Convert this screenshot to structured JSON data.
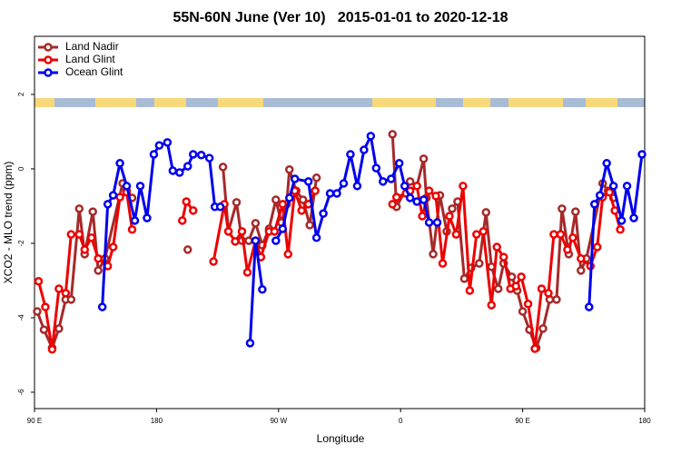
{
  "chart_data": {
    "type": "line",
    "title": "55N-60N June (Ver 10)   2015-01-01 to 2020-12-18",
    "xlabel": "Longitude",
    "ylabel": "XCO2 - MLO trend (ppm)",
    "xlim": [
      90,
      540
    ],
    "ylim": [
      -6.44,
      3.56
    ],
    "xticks": [
      {
        "value": 90,
        "label": "90 E"
      },
      {
        "value": 180,
        "label": "180"
      },
      {
        "value": 270,
        "label": "90 W"
      },
      {
        "value": 360,
        "label": "0"
      },
      {
        "value": 450,
        "label": "90 E"
      },
      {
        "value": 540,
        "label": "180"
      }
    ],
    "yticks": [
      -6,
      -4,
      -2,
      0,
      2
    ],
    "legend": "top-left",
    "series": [
      {
        "name": "Land Nadir",
        "color": "#a52a2a",
        "x": [
          92,
          97,
          103,
          108,
          113,
          117,
          123,
          127,
          133,
          137,
          142,
          155,
          158,
          162,
          null,
          203,
          null,
          229,
          233,
          239,
          243,
          248,
          253,
          258,
          263,
          268,
          272,
          276,
          278,
          283,
          288,
          293,
          298,
          null,
          354,
          357,
          367,
          372,
          377,
          379,
          384,
          389,
          394,
          398,
          402,
          407,
          412,
          418,
          423,
          427,
          432,
          436,
          442,
          446,
          450,
          455,
          460,
          465,
          470,
          475,
          479,
          484,
          489,
          493,
          497,
          509,
          513,
          517
        ],
        "values": [
          -3.83,
          -4.32,
          -4.81,
          -4.29,
          -3.51,
          -3.51,
          -1.07,
          -2.29,
          -1.15,
          -2.73,
          -2.41,
          -0.39,
          -0.59,
          -0.78,
          null,
          -2.17,
          null,
          0.05,
          -1.68,
          -0.9,
          -1.93,
          -1.93,
          -1.46,
          -2.05,
          -1.61,
          -0.83,
          -1.44,
          -0.95,
          -0.02,
          -0.59,
          -0.83,
          -1.51,
          -0.24,
          null,
          0.93,
          -1.02,
          -0.34,
          -0.46,
          0.27,
          -0.78,
          -2.29,
          -0.71,
          -1.68,
          -1.07,
          -0.88,
          -2.95,
          -2.66,
          -2.54,
          -1.17,
          -2.63,
          -3.22,
          -2.54,
          -2.9,
          -3.27,
          -3.83,
          -4.32,
          -4.81,
          -4.29,
          -3.51,
          -3.51,
          -1.07,
          -2.29,
          -1.15,
          -2.73,
          -2.41,
          -0.39,
          -0.59,
          -0.78
        ]
      },
      {
        "name": "Land Glint",
        "color": "#ee0000",
        "x": [
          93,
          98,
          103,
          108,
          113,
          117,
          123,
          127,
          132,
          137,
          144,
          148,
          153,
          158,
          162,
          null,
          199,
          202,
          207,
          null,
          222,
          230,
          233,
          238,
          243,
          247,
          253,
          257,
          263,
          267,
          273,
          277,
          282,
          287,
          292,
          297,
          null,
          354,
          357,
          364,
          367,
          372,
          376,
          381,
          386,
          391,
          396,
          401,
          406,
          411,
          416,
          421,
          427,
          431,
          436,
          441,
          445,
          449,
          454,
          459,
          464,
          469,
          473,
          478,
          483,
          487,
          493,
          500,
          505,
          509,
          514,
          518,
          522
        ],
        "values": [
          -3.02,
          -3.71,
          -4.85,
          -3.22,
          -3.34,
          -1.76,
          -1.76,
          -2.17,
          -1.85,
          -2.41,
          -2.61,
          -2.1,
          -0.76,
          -0.63,
          -1.63,
          null,
          -1.39,
          -0.88,
          -1.12,
          null,
          -2.49,
          -0.95,
          -1.68,
          -1.95,
          -1.68,
          -2.78,
          -1.93,
          -2.37,
          -1.68,
          -1.68,
          -0.95,
          -2.29,
          -0.59,
          -1.12,
          -0.95,
          -0.59,
          null,
          -0.95,
          -0.76,
          -0.66,
          -0.59,
          -0.46,
          -1.27,
          -0.59,
          -0.73,
          -2.54,
          -1.27,
          -1.76,
          -0.46,
          -3.27,
          -1.76,
          -1.68,
          -3.66,
          -2.1,
          -2.37,
          -3.22,
          -3.15,
          -2.9,
          -3.63,
          -4.83,
          -3.22,
          -3.34,
          -1.76,
          -1.76,
          -2.17,
          -1.85,
          -2.41,
          -2.61,
          -2.1,
          -0.76,
          -0.63,
          -1.12,
          -1.63
        ]
      },
      {
        "name": "Ocean Glint",
        "color": "#0000ee",
        "x": [
          140,
          144,
          148,
          153,
          158,
          164,
          168,
          173,
          178,
          182,
          188,
          192,
          197,
          203,
          207,
          213,
          219,
          223,
          227,
          null,
          249,
          253,
          258,
          null,
          268,
          273,
          278,
          282,
          292,
          298,
          303,
          308,
          313,
          318,
          323,
          328,
          333,
          338,
          342,
          347,
          353,
          359,
          363,
          367,
          372,
          377,
          381,
          387,
          null,
          499,
          503,
          507,
          512,
          517,
          523,
          527,
          532,
          538
        ],
        "values": [
          -3.71,
          -0.95,
          -0.71,
          0.15,
          -0.46,
          -1.39,
          -0.46,
          -1.32,
          0.39,
          0.63,
          0.71,
          -0.05,
          -0.1,
          0.07,
          0.39,
          0.37,
          0.29,
          -1.02,
          -1.02,
          null,
          -4.68,
          -1.93,
          -3.24,
          null,
          -1.93,
          -1.61,
          -0.78,
          -0.27,
          -0.34,
          -1.85,
          -1.2,
          -0.66,
          -0.66,
          -0.39,
          0.39,
          -0.46,
          0.51,
          0.88,
          0.02,
          -0.34,
          -0.27,
          0.15,
          -0.46,
          -0.78,
          -0.88,
          -0.83,
          -1.44,
          -1.44,
          null,
          -3.71,
          -0.95,
          -0.71,
          0.15,
          -0.46,
          -1.39,
          -0.46,
          -1.32,
          0.39
        ]
      }
    ]
  }
}
